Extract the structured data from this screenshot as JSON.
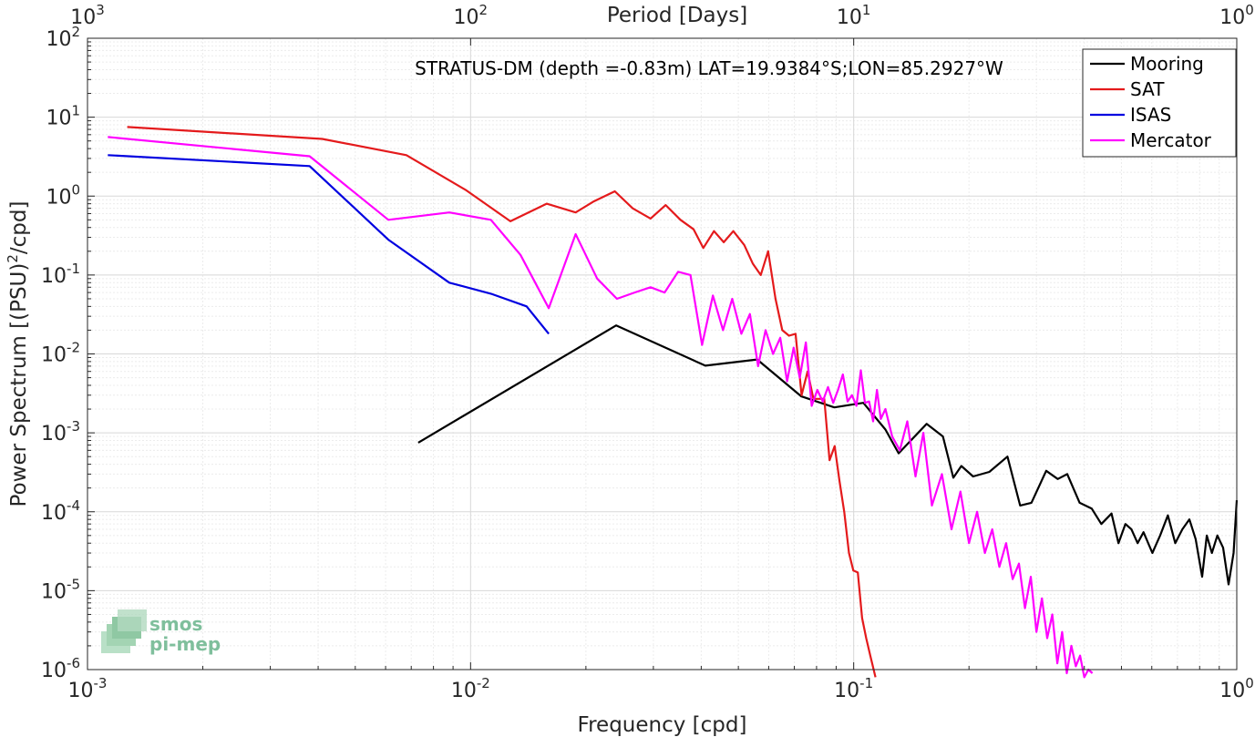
{
  "chart_data": {
    "type": "line",
    "title": "STRATUS-DM (depth =-0.83m) LAT=19.9384°S;LON=85.2927°W",
    "xlabel": "Frequency [cpd]",
    "ylabel": "Power Spectrum [(PSU)²/cpd]",
    "ylabel_parts": {
      "a": "Power Spectrum [(PSU)",
      "sup": "2",
      "b": "/cpd]"
    },
    "top_xlabel": "Period [Days]",
    "x_scale": "log",
    "y_scale": "log",
    "xlim": [
      0.001,
      1
    ],
    "ylim": [
      1e-06,
      100
    ],
    "grid": true,
    "legend_position": "top-right",
    "x_ticks": [
      {
        "value": 0.001,
        "base": "10",
        "exp": "-3"
      },
      {
        "value": 0.01,
        "base": "10",
        "exp": "-2"
      },
      {
        "value": 0.1,
        "base": "10",
        "exp": "-1"
      },
      {
        "value": 1,
        "base": "10",
        "exp": "0"
      }
    ],
    "top_ticks": [
      {
        "freq": 0.001,
        "base": "10",
        "exp": "3"
      },
      {
        "freq": 0.01,
        "base": "10",
        "exp": "2"
      },
      {
        "freq": 0.1,
        "base": "10",
        "exp": "1"
      },
      {
        "freq": 1,
        "base": "10",
        "exp": "0"
      }
    ],
    "y_ticks": [
      {
        "value": 1e-06,
        "base": "10",
        "exp": "-6"
      },
      {
        "value": 1e-05,
        "base": "10",
        "exp": "-5"
      },
      {
        "value": 0.0001,
        "base": "10",
        "exp": "-4"
      },
      {
        "value": 0.001,
        "base": "10",
        "exp": "-3"
      },
      {
        "value": 0.01,
        "base": "10",
        "exp": "-2"
      },
      {
        "value": 0.1,
        "base": "10",
        "exp": "-1"
      },
      {
        "value": 1,
        "base": "10",
        "exp": "0"
      },
      {
        "value": 10,
        "base": "10",
        "exp": "1"
      },
      {
        "value": 100,
        "base": "10",
        "exp": "2"
      }
    ],
    "series": [
      {
        "name": "Mooring",
        "color": "#000000",
        "x": [
          0.0073,
          0.024,
          0.041,
          0.056,
          0.073,
          0.089,
          0.1,
          0.106,
          0.121,
          0.131,
          0.141,
          0.155,
          0.171,
          0.182,
          0.191,
          0.205,
          0.226,
          0.252,
          0.272,
          0.291,
          0.318,
          0.341,
          0.361,
          0.389,
          0.418,
          0.443,
          0.471,
          0.491,
          0.512,
          0.531,
          0.551,
          0.571,
          0.602,
          0.631,
          0.661,
          0.691,
          0.721,
          0.752,
          0.781,
          0.812,
          0.835,
          0.861,
          0.89,
          0.921,
          0.952,
          0.981,
          1.0
        ],
        "y": [
          0.00075,
          0.023,
          0.0071,
          0.0085,
          0.0029,
          0.0021,
          0.0023,
          0.0024,
          0.0011,
          0.00055,
          0.0008,
          0.0013,
          0.0009,
          0.00027,
          0.00038,
          0.00028,
          0.00032,
          0.0005,
          0.00012,
          0.00013,
          0.00033,
          0.00026,
          0.0003,
          0.00013,
          0.00011,
          7e-05,
          9.5e-05,
          4e-05,
          7e-05,
          6e-05,
          4e-05,
          5.5e-05,
          3e-05,
          5e-05,
          9e-05,
          4e-05,
          6e-05,
          8e-05,
          4.5e-05,
          1.5e-05,
          5e-05,
          3e-05,
          5e-05,
          3.5e-05,
          1.2e-05,
          3e-05,
          0.00014
        ]
      },
      {
        "name": "SAT",
        "color": "#e41a1c",
        "x": [
          0.00127,
          0.0041,
          0.0068,
          0.0097,
          0.0127,
          0.0158,
          0.0188,
          0.0209,
          0.0238,
          0.0265,
          0.0295,
          0.0323,
          0.0353,
          0.0382,
          0.0405,
          0.0432,
          0.0458,
          0.0485,
          0.0518,
          0.0545,
          0.0572,
          0.0598,
          0.0625,
          0.0651,
          0.0678,
          0.0705,
          0.0731,
          0.0758,
          0.0785,
          0.0812,
          0.0838,
          0.0865,
          0.0892,
          0.0918,
          0.0945,
          0.0972,
          0.0998,
          0.1025,
          0.1052,
          0.1078,
          0.1105,
          0.114
        ],
        "y": [
          7.5,
          5.3,
          3.3,
          1.2,
          0.48,
          0.8,
          0.62,
          0.85,
          1.15,
          0.7,
          0.52,
          0.77,
          0.5,
          0.38,
          0.22,
          0.36,
          0.26,
          0.36,
          0.24,
          0.14,
          0.1,
          0.2,
          0.05,
          0.02,
          0.017,
          0.018,
          0.003,
          0.006,
          0.0027,
          0.0027,
          0.0027,
          0.00045,
          0.00068,
          0.00025,
          0.0001,
          3e-05,
          1.8e-05,
          1.7e-05,
          4.5e-06,
          2.5e-06,
          1.5e-06,
          8e-07
        ]
      },
      {
        "name": "ISAS",
        "color": "#0000e0",
        "x": [
          0.00113,
          0.0038,
          0.0061,
          0.0088,
          0.0113,
          0.014,
          0.016
        ],
        "y": [
          3.3,
          2.4,
          0.28,
          0.08,
          0.058,
          0.04,
          0.018
        ]
      },
      {
        "name": "Mercator",
        "color": "#ff00ff",
        "x": [
          0.00113,
          0.0038,
          0.0061,
          0.0088,
          0.0113,
          0.0135,
          0.016,
          0.0188,
          0.0214,
          0.0241,
          0.0268,
          0.0295,
          0.0321,
          0.0348,
          0.0375,
          0.0402,
          0.0429,
          0.0456,
          0.0482,
          0.0509,
          0.0536,
          0.0563,
          0.0589,
          0.0616,
          0.0643,
          0.067,
          0.0697,
          0.0723,
          0.075,
          0.0777,
          0.0804,
          0.083,
          0.0857,
          0.0884,
          0.091,
          0.0937,
          0.0964,
          0.099,
          0.1017,
          0.1044,
          0.107,
          0.1097,
          0.1124,
          0.115,
          0.1177,
          0.121,
          0.126,
          0.132,
          0.138,
          0.145,
          0.152,
          0.16,
          0.17,
          0.18,
          0.19,
          0.2,
          0.21,
          0.22,
          0.23,
          0.24,
          0.25,
          0.26,
          0.27,
          0.28,
          0.29,
          0.3,
          0.31,
          0.32,
          0.33,
          0.34,
          0.35,
          0.36,
          0.37,
          0.38,
          0.39,
          0.4,
          0.41,
          0.42
        ],
        "y": [
          5.6,
          3.2,
          0.5,
          0.62,
          0.5,
          0.18,
          0.038,
          0.33,
          0.09,
          0.05,
          0.06,
          0.07,
          0.06,
          0.11,
          0.1,
          0.013,
          0.055,
          0.02,
          0.05,
          0.018,
          0.032,
          0.007,
          0.02,
          0.01,
          0.016,
          0.0045,
          0.012,
          0.005,
          0.014,
          0.0022,
          0.0035,
          0.0025,
          0.0038,
          0.0024,
          0.0035,
          0.0055,
          0.0025,
          0.003,
          0.0022,
          0.0062,
          0.0024,
          0.0025,
          0.0014,
          0.0035,
          0.0015,
          0.002,
          0.0009,
          0.0006,
          0.0014,
          0.00028,
          0.001,
          0.00012,
          0.0003,
          6e-05,
          0.00018,
          4e-05,
          0.0001,
          3e-05,
          6e-05,
          2e-05,
          4e-05,
          1.4e-05,
          2.2e-05,
          6e-06,
          1.5e-05,
          3e-06,
          8e-06,
          2.5e-06,
          5e-06,
          1.2e-06,
          3e-06,
          9e-07,
          2e-06,
          1.1e-06,
          1.5e-06,
          8e-07,
          1e-06,
          9e-07
        ]
      }
    ]
  },
  "logo": {
    "line1": "smos",
    "line2": "pi-mep"
  }
}
